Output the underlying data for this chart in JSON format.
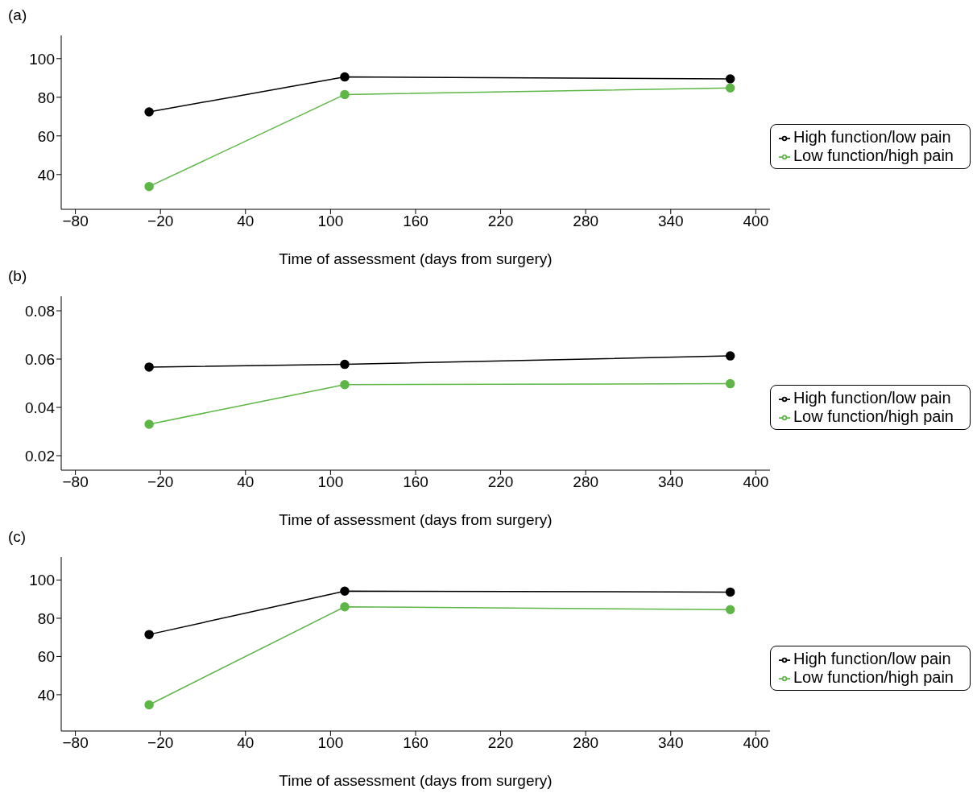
{
  "chart_data": [
    {
      "type": "line",
      "title": "(a)",
      "xlabel": "Time of assessment (days from surgery)",
      "x": [
        -28,
        110,
        382
      ],
      "xlim": [
        -90,
        410
      ],
      "xticks": [
        -80,
        -20,
        40,
        100,
        160,
        220,
        280,
        340,
        400
      ],
      "ylim": [
        22,
        112
      ],
      "yticks": [
        40,
        60,
        80,
        100
      ],
      "grid": false,
      "legend": "right",
      "marker": "circle",
      "line_style": "solid",
      "series": [
        {
          "name": "High function/low pain",
          "color": "#000000",
          "values": [
            72.4,
            90.5,
            89.5
          ]
        },
        {
          "name": "Low function/high pain",
          "color": "#5db645",
          "values": [
            33.8,
            81.4,
            84.8
          ]
        }
      ]
    },
    {
      "type": "line",
      "title": "(b)",
      "xlabel": "Time of assessment (days from surgery)",
      "x": [
        -28,
        110,
        382
      ],
      "xlim": [
        -90,
        410
      ],
      "xticks": [
        -80,
        -20,
        40,
        100,
        160,
        220,
        280,
        340,
        400
      ],
      "ylim": [
        0.014,
        0.086
      ],
      "yticks": [
        0.02,
        0.04,
        0.06,
        0.08
      ],
      "grid": false,
      "legend": "right",
      "marker": "circle",
      "line_style": "solid",
      "series": [
        {
          "name": "High function/low pain",
          "color": "#000000",
          "values": [
            0.0567,
            0.0578,
            0.0613
          ]
        },
        {
          "name": "Low function/high pain",
          "color": "#5db645",
          "values": [
            0.033,
            0.0494,
            0.0498
          ]
        }
      ]
    },
    {
      "type": "line",
      "title": "(c)",
      "xlabel": "Time of assessment (days from surgery)",
      "x": [
        -28,
        110,
        382
      ],
      "xlim": [
        -90,
        410
      ],
      "xticks": [
        -80,
        -20,
        40,
        100,
        160,
        220,
        280,
        340,
        400
      ],
      "ylim": [
        21,
        112
      ],
      "yticks": [
        40,
        60,
        80,
        100
      ],
      "grid": false,
      "legend": "right",
      "marker": "circle",
      "line_style": "solid",
      "series": [
        {
          "name": "High function/low pain",
          "color": "#000000",
          "values": [
            71.5,
            94.2,
            93.7
          ]
        },
        {
          "name": "Low function/high pain",
          "color": "#5db645",
          "values": [
            34.7,
            86,
            84.5
          ]
        }
      ]
    }
  ]
}
